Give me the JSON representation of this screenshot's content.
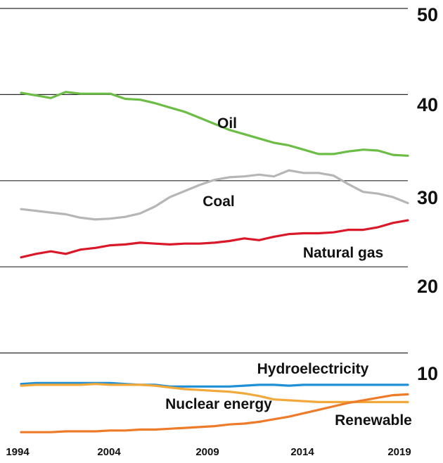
{
  "chart_data": {
    "type": "line",
    "title": "",
    "xlabel": "",
    "ylabel": "",
    "xlim": [
      1994,
      2020
    ],
    "ylim": [
      0,
      50
    ],
    "y_ticks": [
      "10",
      "20",
      "30",
      "40",
      "50"
    ],
    "x_ticks": [
      "1994",
      "2004",
      "2009",
      "2014",
      "2019"
    ],
    "grid": "horizontal",
    "x": [
      1994,
      1995,
      1996,
      1997,
      1998,
      1999,
      2000,
      2001,
      2002,
      2003,
      2004,
      2005,
      2006,
      2007,
      2008,
      2009,
      2010,
      2011,
      2012,
      2013,
      2014,
      2015,
      2016,
      2017,
      2018,
      2019,
      2020
    ],
    "series": [
      {
        "name": "Oil",
        "color": "#6cbd45",
        "values": [
          40.2,
          39.9,
          39.6,
          40.3,
          40.1,
          40.1,
          40.1,
          39.5,
          39.4,
          39.0,
          38.5,
          38.0,
          37.3,
          36.6,
          35.9,
          35.4,
          34.9,
          34.4,
          34.1,
          33.6,
          33.1,
          33.1,
          33.4,
          33.6,
          33.5,
          33.0,
          32.9
        ]
      },
      {
        "name": "Coal",
        "color": "#b5b6b8",
        "values": [
          26.7,
          26.5,
          26.3,
          26.1,
          25.7,
          25.5,
          25.6,
          25.8,
          26.2,
          27.0,
          28.1,
          28.8,
          29.5,
          30.1,
          30.4,
          30.5,
          30.7,
          30.5,
          31.2,
          30.9,
          30.9,
          30.6,
          29.6,
          28.7,
          28.5,
          28.1,
          27.4
        ]
      },
      {
        "name": "Natural gas",
        "color": "#d9192a",
        "values": [
          21.1,
          21.5,
          21.8,
          21.5,
          22.0,
          22.2,
          22.5,
          22.6,
          22.8,
          22.7,
          22.6,
          22.7,
          22.7,
          22.8,
          23.0,
          23.3,
          23.1,
          23.5,
          23.8,
          23.9,
          23.9,
          24.0,
          24.3,
          24.3,
          24.6,
          25.1,
          25.4
        ]
      },
      {
        "name": "Hydroelectricity",
        "color": "#1f8fd6",
        "values": [
          6.4,
          6.5,
          6.5,
          6.5,
          6.5,
          6.5,
          6.5,
          6.4,
          6.3,
          6.3,
          6.1,
          6.1,
          6.1,
          6.1,
          6.1,
          6.2,
          6.3,
          6.3,
          6.2,
          6.3,
          6.3,
          6.3,
          6.3,
          6.3,
          6.3,
          6.3,
          6.3
        ]
      },
      {
        "name": "Nuclear energy",
        "color": "#f2a93b",
        "values": [
          6.2,
          6.3,
          6.3,
          6.3,
          6.3,
          6.4,
          6.3,
          6.3,
          6.3,
          6.2,
          6.0,
          5.8,
          5.7,
          5.6,
          5.5,
          5.3,
          5.0,
          4.6,
          4.5,
          4.4,
          4.3,
          4.3,
          4.3,
          4.3,
          4.3,
          4.3,
          4.3
        ]
      },
      {
        "name": "Renewable",
        "color": "#ee7b2a",
        "values": [
          0.8,
          0.8,
          0.8,
          0.9,
          0.9,
          0.9,
          1.0,
          1.0,
          1.1,
          1.1,
          1.2,
          1.3,
          1.4,
          1.5,
          1.7,
          1.8,
          2.0,
          2.3,
          2.6,
          3.0,
          3.4,
          3.8,
          4.2,
          4.5,
          4.8,
          5.1,
          5.2
        ]
      }
    ]
  }
}
